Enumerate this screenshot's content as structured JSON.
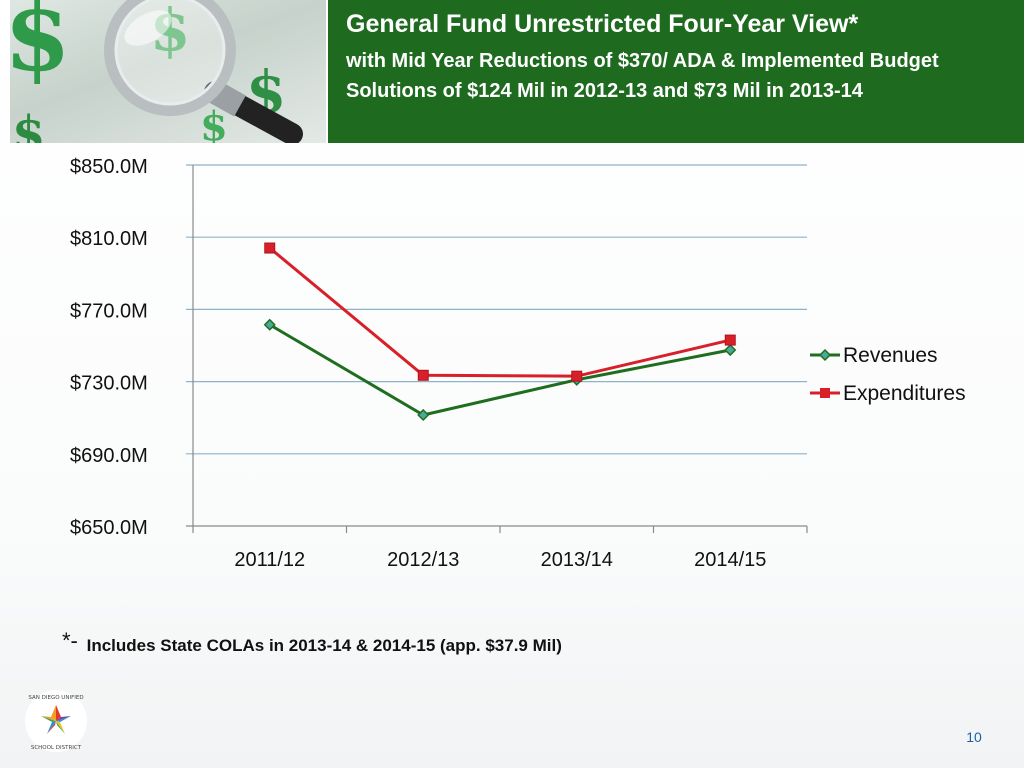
{
  "slide": {
    "title": "General Fund Unrestricted Four-Year View*",
    "subtitle": "with Mid Year Reductions of $370/ ADA & Implemented Budget Solutions of $124 Mil in 2012-13 and $73 Mil in 2013-14",
    "footnote_marker": "*-",
    "footnote_text": "Includes State COLAs in 2013-14 & 2014-15 (app. $37.9 Mil)",
    "logo_text": "SAN DIEGO UNIFIED SCHOOL DISTRICT",
    "page_number": "10"
  },
  "colors": {
    "title_band": "#1e6b1f",
    "revenues": "#1f6e1f",
    "expenditures": "#d7202a",
    "gridline": "#8db3c7",
    "page_number": "#1f5fa8"
  },
  "chart_data": {
    "type": "line",
    "categories": [
      "2011/12",
      "2012/13",
      "2013/14",
      "2014/15"
    ],
    "series": [
      {
        "name": "Revenues",
        "values": [
          761.5,
          711.5,
          731.0,
          747.5
        ],
        "marker": "diamond"
      },
      {
        "name": "Expenditures",
        "values": [
          804.0,
          733.5,
          733.0,
          753.0
        ],
        "marker": "square"
      }
    ],
    "y_ticks": [
      850,
      810,
      770,
      730,
      690,
      650
    ],
    "y_tick_labels": [
      "$850.0M",
      "$810.0M",
      "$770.0M",
      "$730.0M",
      "$690.0M",
      "$650.0M"
    ],
    "ylim": [
      650,
      850
    ],
    "grid": true,
    "legend_position": "right"
  }
}
